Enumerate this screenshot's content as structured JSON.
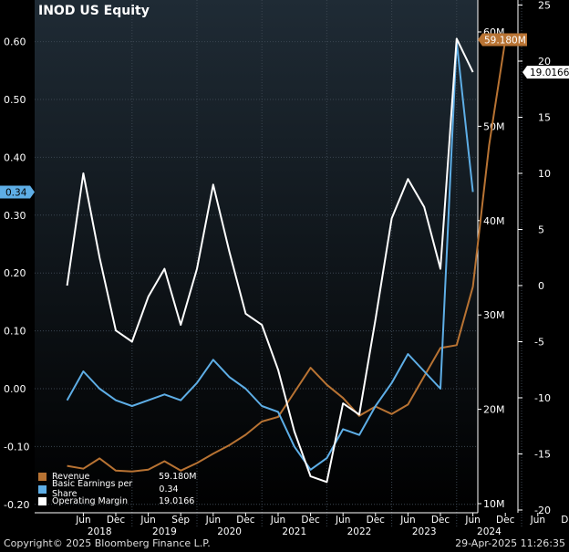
{
  "title": "INOD US Equity",
  "copyright": "Copyright© 2025 Bloomberg Finance L.P.",
  "timestamp": "29-Apr-2025 11:26:35",
  "colors": {
    "revenue": "#B87333",
    "eps": "#5EAEE6",
    "margin": "#FFFFFF",
    "background": "#000000"
  },
  "legend": [
    {
      "key": "revenue",
      "label": "Revenue",
      "value": "59.180M"
    },
    {
      "key": "eps",
      "label": "Basic Earnings per Share",
      "value": "0.34"
    },
    {
      "key": "margin",
      "label": "Operating Margin",
      "value": "19.0166"
    }
  ],
  "last_value_tags": {
    "revenue": "59.180M",
    "eps": "0.34",
    "margin": "19.0166"
  },
  "chart_data": {
    "type": "line",
    "title": "INOD US Equity",
    "x_labels": [
      "Jun",
      "Dec",
      "Jun",
      "Sep",
      "Jun",
      "Dec",
      "Jun",
      "Dec",
      "Jun",
      "Dec",
      "Jun",
      "Dec",
      "Jun",
      "Dec",
      "Jun",
      "Dec"
    ],
    "x_label_quarters": [
      3,
      5,
      7,
      9,
      11,
      13,
      15,
      17,
      19,
      21,
      23,
      25,
      27,
      29,
      31,
      33
    ],
    "year_labels": [
      "2018",
      "2019",
      "2020",
      "2021",
      "2022",
      "2023",
      "2024"
    ],
    "year_label_quarters": [
      4,
      8,
      12,
      16,
      20,
      24,
      28
    ],
    "year_separators": [
      6,
      10,
      14,
      18,
      22,
      26,
      30
    ],
    "axes": {
      "eps_left": {
        "min": -0.2,
        "max": 0.65,
        "ticks": [
          -0.2,
          -0.1,
          0.0,
          0.1,
          0.2,
          0.3,
          0.4,
          0.5,
          0.6
        ],
        "labels": [
          "-0.20",
          "-0.10",
          "0.00",
          "0.10",
          "0.20",
          "0.30",
          "0.40",
          "0.50",
          "0.60"
        ]
      },
      "revenue_right_inner": {
        "min": 10,
        "max": 61,
        "ticks": [
          10,
          20,
          30,
          40,
          50,
          60
        ],
        "labels": [
          "10M",
          "20M",
          "30M",
          "40M",
          "50M",
          "60M"
        ]
      },
      "margin_right_outer": {
        "min": -20,
        "max": 25,
        "ticks": [
          -20,
          -15,
          -10,
          -5,
          0,
          5,
          10,
          15,
          20,
          25
        ],
        "labels": [
          "-20",
          "-15",
          "-10",
          "-5",
          "0",
          "5",
          "10",
          "15",
          "20",
          "25"
        ]
      }
    },
    "series": [
      {
        "name": "Revenue",
        "axis": "revenue_right_inner",
        "color": "#B87333",
        "values": [
          14.0,
          13.7,
          14.8,
          13.5,
          13.4,
          13.6,
          14.5,
          13.5,
          14.3,
          15.3,
          16.2,
          17.3,
          18.7,
          19.2,
          21.8,
          24.4,
          22.6,
          21.2,
          19.3,
          20.3,
          19.5,
          20.5,
          23.5,
          26.5,
          26.8,
          33.0,
          48.0,
          59.18
        ]
      },
      {
        "name": "Basic Earnings per Share",
        "axis": "eps_left",
        "color": "#5EAEE6",
        "values": [
          -0.02,
          0.03,
          0.0,
          -0.02,
          -0.03,
          -0.02,
          -0.01,
          -0.02,
          0.01,
          0.05,
          0.02,
          0.0,
          -0.03,
          -0.04,
          -0.1,
          -0.14,
          -0.12,
          -0.07,
          -0.08,
          -0.03,
          0.01,
          0.06,
          0.03,
          0.0,
          0.6,
          0.34
        ]
      },
      {
        "name": "Operating Margin",
        "axis": "margin_right_outer",
        "color": "#FFFFFF",
        "values": [
          0,
          10,
          2.5,
          -4,
          -5,
          -1,
          1.5,
          -3.5,
          1.5,
          9,
          3,
          -2.5,
          -3.5,
          -7.5,
          -13,
          -17,
          -17.5,
          -10.5,
          -11.5,
          -3,
          6,
          9.5,
          7,
          1.5,
          22,
          19.0166
        ]
      }
    ],
    "series_start_quarter": {
      "Revenue": 2,
      "Basic Earnings per Share": 2,
      "Operating Margin": 2
    },
    "grid": true
  }
}
